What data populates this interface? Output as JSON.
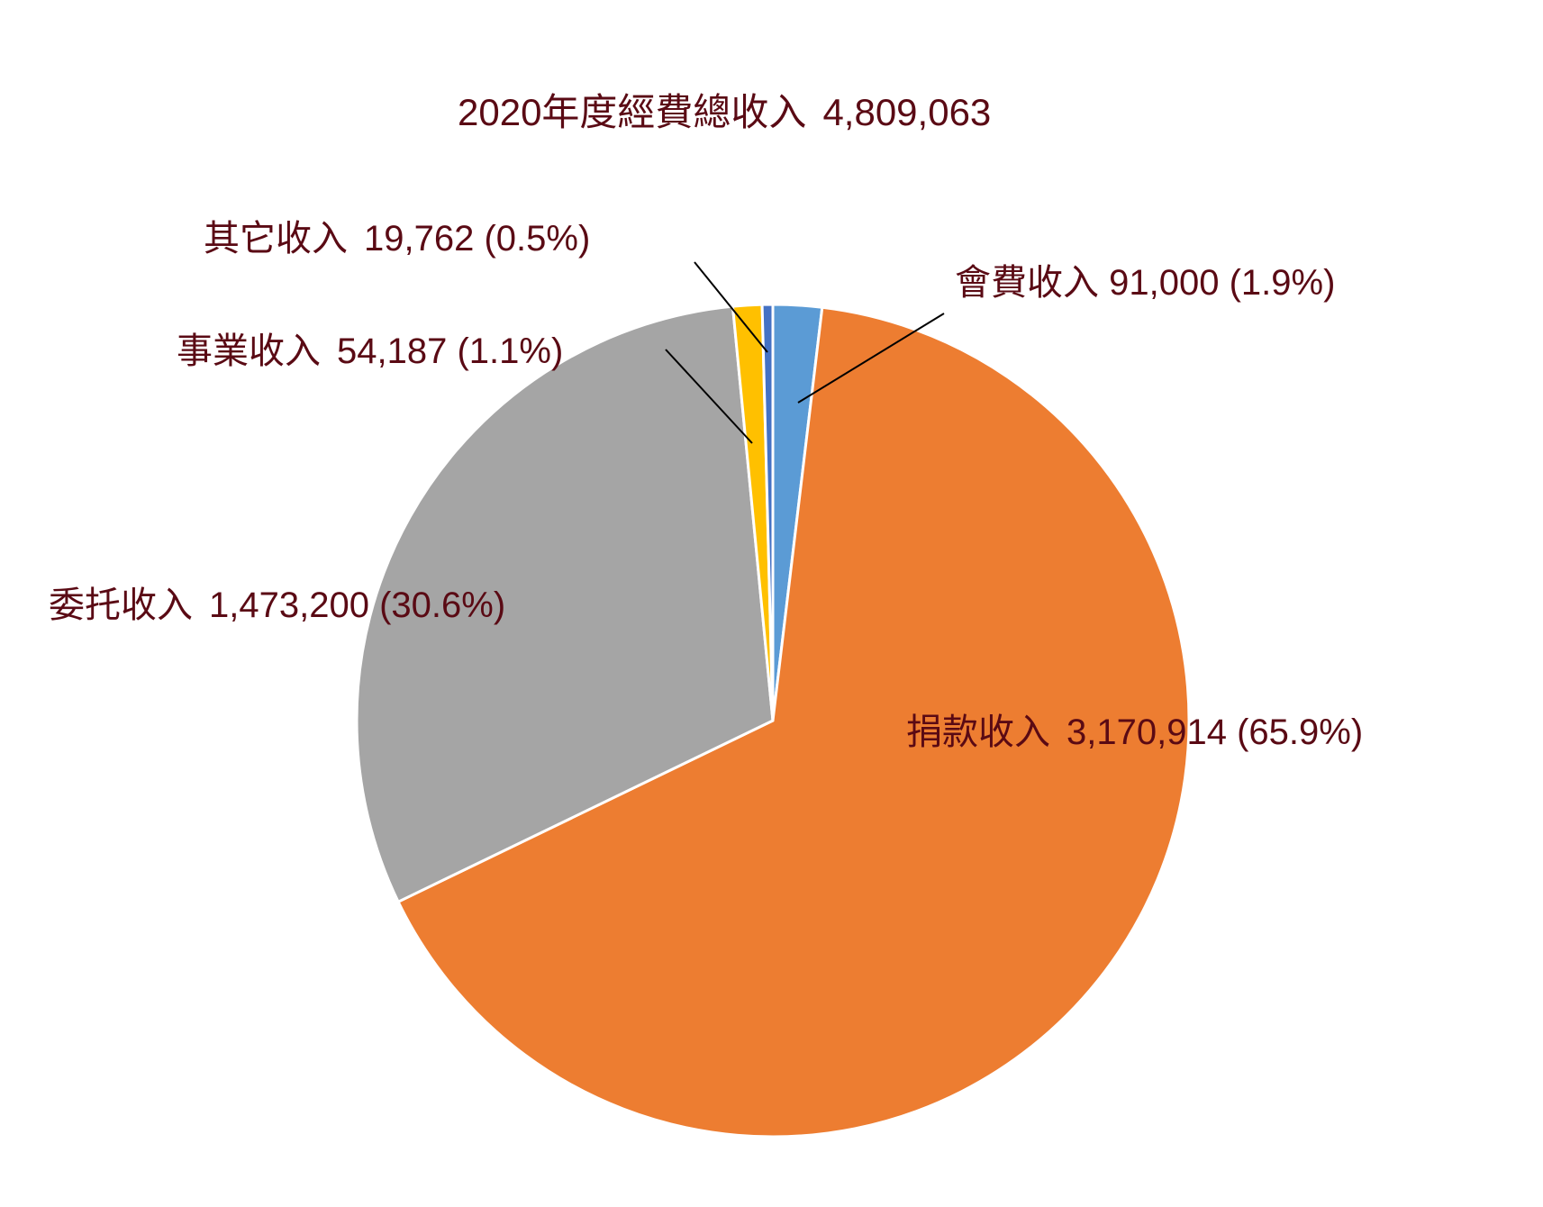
{
  "chart_data": {
    "type": "pie",
    "title": "2020年度經費總收入 4,809,063",
    "title_label": "2020年度經費總收入",
    "title_total": "4,809,063",
    "total": 4809063,
    "categories": [
      "會費收入",
      "捐款收入",
      "委托收入",
      "事業收入",
      "其它收入"
    ],
    "values": [
      91000,
      3170914,
      1473200,
      54187,
      19762
    ],
    "percentages": [
      1.9,
      65.9,
      30.6,
      1.1,
      0.5
    ],
    "colors": [
      "#5b9bd5",
      "#ed7d31",
      "#a5a5a5",
      "#ffc000",
      "#4472c4"
    ],
    "start_angle_deg": 0,
    "direction": "clockwise",
    "legend": "none (data labels)",
    "slices": [
      {
        "name": "會費收入",
        "value": "91,000",
        "pct": "(1.9%)",
        "color": "#5b9bd5"
      },
      {
        "name": "捐款收入",
        "value": "3,170,914",
        "pct": "(65.9%)",
        "color": "#ed7d31"
      },
      {
        "name": "委托收入",
        "value": "1,473,200",
        "pct": "(30.6%)",
        "color": "#a5a5a5"
      },
      {
        "name": "事業收入",
        "value": "54,187",
        "pct": "(1.1%)",
        "color": "#ffc000"
      },
      {
        "name": "其它收入",
        "value": "19,762",
        "pct": "(0.5%)",
        "color": "#4472c4"
      }
    ]
  },
  "colors": {
    "label_text": "#5a0a14",
    "leader_line": "#000000",
    "slice_border": "#ffffff"
  }
}
